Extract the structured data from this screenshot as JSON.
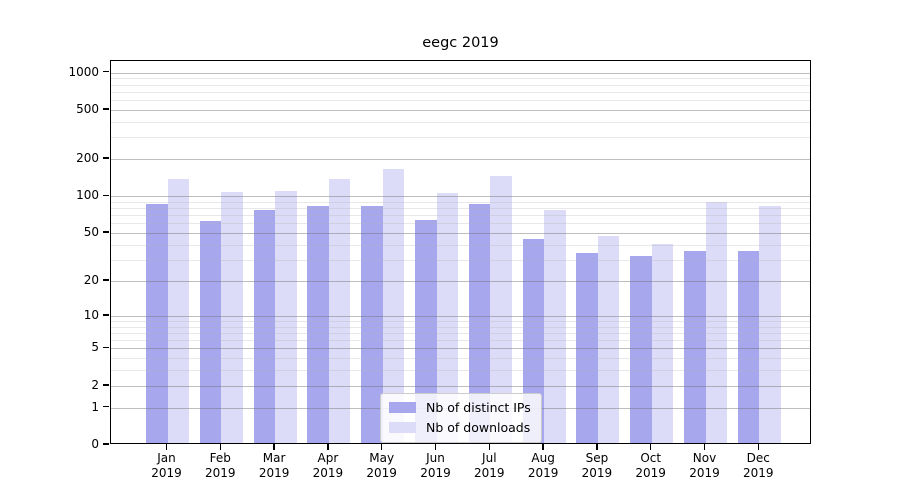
{
  "chart_data": {
    "type": "bar",
    "title": "eegc 2019",
    "categories": [
      "Jan",
      "Feb",
      "Mar",
      "Apr",
      "May",
      "Jun",
      "Jul",
      "Aug",
      "Sep",
      "Oct",
      "Nov",
      "Dec"
    ],
    "year_label": "2019",
    "series": [
      {
        "name": "Nb of distinct IPs",
        "color": "#a7a7ee",
        "values": [
          83,
          61,
          75,
          80,
          80,
          62,
          84,
          43,
          33,
          31,
          34,
          34
        ]
      },
      {
        "name": "Nb of downloads",
        "color": "#dcdcf8",
        "values": [
          134,
          104,
          106,
          132,
          161,
          102,
          140,
          75,
          46,
          39,
          87,
          80
        ]
      }
    ],
    "xlabel": "",
    "ylabel": "",
    "y_scale": "log10(1+x)",
    "y_ticks": [
      0,
      1,
      2,
      5,
      10,
      20,
      50,
      100,
      200,
      500,
      1000
    ],
    "y_minor_gridlines": [
      3,
      4,
      6,
      7,
      8,
      9,
      30,
      40,
      60,
      70,
      80,
      90,
      300,
      400,
      600,
      700,
      800,
      900
    ],
    "ylim": [
      0,
      1250
    ],
    "grid": true,
    "legend_position": "lower center",
    "colors": {
      "background": "#ffffff",
      "axis": "#000000",
      "grid_major": "#b0b0b0",
      "grid_minor": "#e4e4e4",
      "legend_border": "#cccccc",
      "text": "#000000"
    }
  }
}
